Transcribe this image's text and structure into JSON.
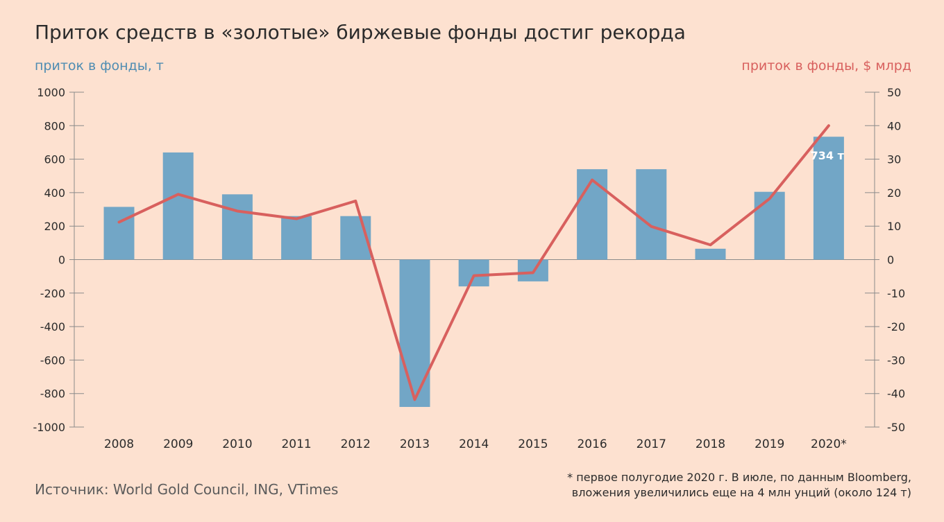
{
  "title": "Приток средств в «золотые» биржевые фонды достиг рекорда",
  "left_axis_label": "приток в фонды, т",
  "right_axis_label": "приток в фонды, $ млрд",
  "source": "Источник: World Gold Council, ING, VTimes",
  "footnote_line1": "* первое полугодие 2020 г. В июле, по данным Bloomberg,",
  "footnote_line2": "вложения увеличились еще на 4 млн унций (около 124 т)",
  "colors": {
    "bars": "#72a6c6",
    "line": "#d8605e",
    "axis": "#8a8a8a",
    "background": "#fde1d0"
  },
  "chart_data": {
    "type": "bar+line",
    "categories": [
      "2008",
      "2009",
      "2010",
      "2011",
      "2012",
      "2013",
      "2014",
      "2015",
      "2016",
      "2017",
      "2018",
      "2019",
      "2020*"
    ],
    "series": [
      {
        "name": "приток в фонды, т",
        "type": "bar",
        "axis": "left",
        "values": [
          315,
          640,
          390,
          260,
          260,
          -880,
          -160,
          -130,
          540,
          540,
          65,
          405,
          734
        ]
      },
      {
        "name": "приток в фонды, $ млрд",
        "type": "line",
        "axis": "right",
        "values": [
          11.2,
          19.5,
          14.5,
          12.2,
          17.5,
          -41.8,
          -4.8,
          -3.9,
          23.8,
          9.9,
          4.4,
          18.2,
          40
        ]
      }
    ],
    "left_ylim": [
      -1000,
      1000
    ],
    "left_ticks": [
      "1000",
      "800",
      "600",
      "400",
      "200",
      "0",
      "-200",
      "-400",
      "-600",
      "-800",
      "-1000"
    ],
    "right_ylim": [
      -50,
      50
    ],
    "right_ticks": [
      "50",
      "40",
      "30",
      "20",
      "10",
      "0",
      "-10",
      "-20",
      "-30",
      "-40",
      "-50"
    ],
    "annotation": "734 т"
  }
}
